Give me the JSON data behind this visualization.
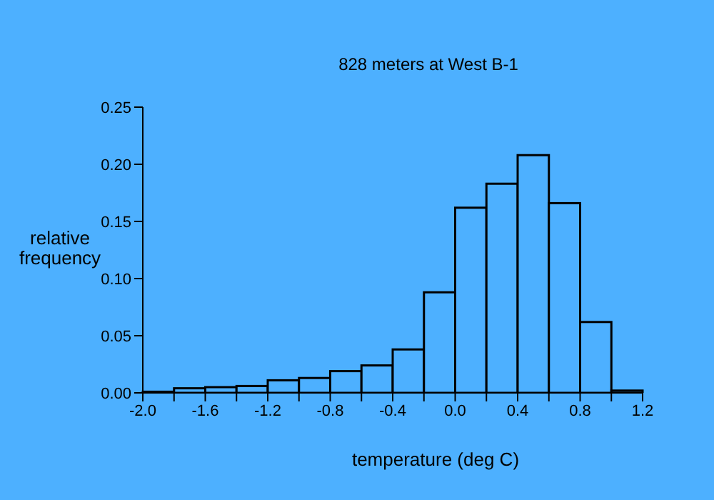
{
  "chart_data": {
    "type": "histogram",
    "title": "828 meters at West B-1",
    "xlabel": "temperature (deg C)",
    "ylabel": "relative frequency",
    "bins": [
      -2.0,
      -1.8,
      -1.6,
      -1.4,
      -1.2,
      -1.0,
      -0.8,
      -0.6,
      -0.4,
      -0.2,
      0.0,
      0.2,
      0.4,
      0.6,
      0.8,
      1.0,
      1.2
    ],
    "values": [
      0.001,
      0.004,
      0.005,
      0.006,
      0.011,
      0.013,
      0.019,
      0.024,
      0.038,
      0.088,
      0.162,
      0.183,
      0.208,
      0.166,
      0.062,
      0.002
    ],
    "color": "#000000",
    "xlim": [
      -2.0,
      1.2
    ],
    "xticks": [
      {
        "value": -2.0,
        "label": "-2.0"
      },
      {
        "value": -1.8,
        "label": null
      },
      {
        "value": -1.6,
        "label": "-1.6"
      },
      {
        "value": -1.4,
        "label": null
      },
      {
        "value": -1.2,
        "label": "-1.2"
      },
      {
        "value": -1.0,
        "label": null
      },
      {
        "value": -0.8,
        "label": "-0.8"
      },
      {
        "value": -0.6,
        "label": null
      },
      {
        "value": -0.4,
        "label": "-0.4"
      },
      {
        "value": -0.2,
        "label": null
      },
      {
        "value": 0.0,
        "label": "0.0"
      },
      {
        "value": 0.2,
        "label": null
      },
      {
        "value": 0.4,
        "label": "0.4"
      },
      {
        "value": 0.6,
        "label": null
      },
      {
        "value": 0.8,
        "label": "0.8"
      },
      {
        "value": 1.0,
        "label": null
      },
      {
        "value": 1.2,
        "label": "1.2"
      }
    ],
    "ylim": [
      0,
      0.25
    ],
    "yticks": [
      {
        "value": 0,
        "label": "0.00"
      },
      {
        "value": 0.05,
        "label": "0.05"
      },
      {
        "value": 0.1,
        "label": "0.10"
      },
      {
        "value": 0.15,
        "label": "0.15"
      },
      {
        "value": 0.2,
        "label": "0.20"
      },
      {
        "value": 0.25,
        "label": "0.25"
      }
    ]
  }
}
